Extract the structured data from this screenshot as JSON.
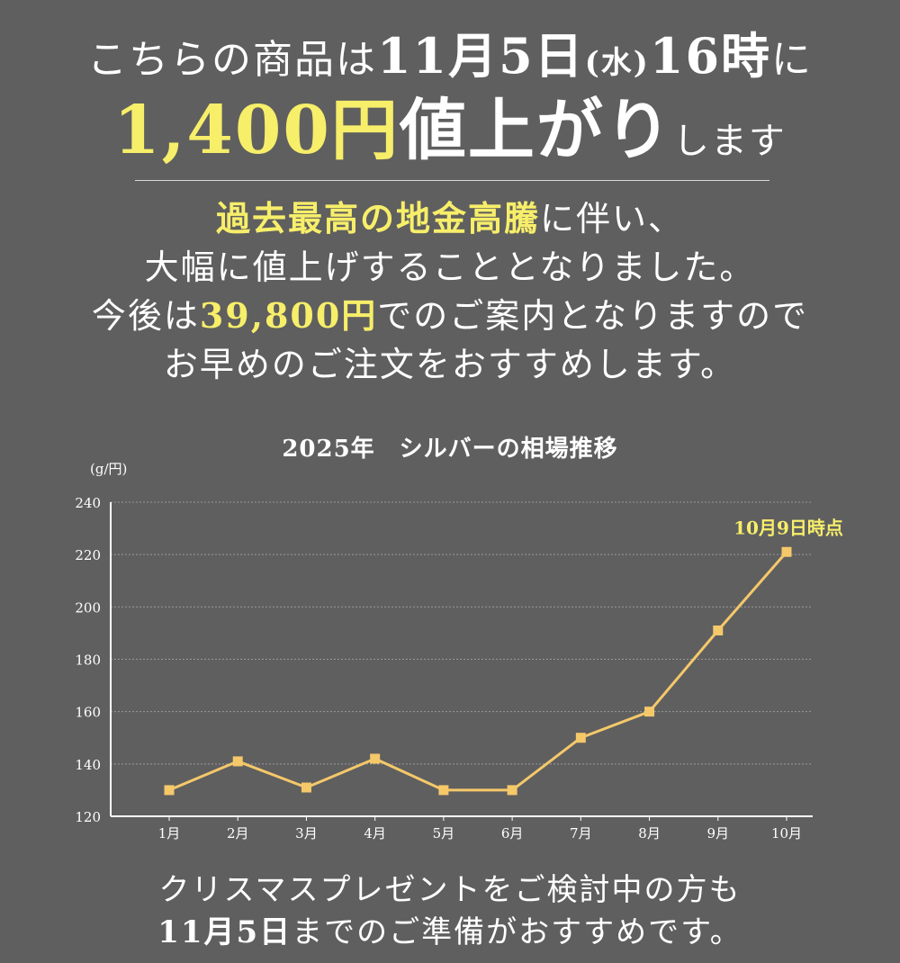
{
  "headline": {
    "part1": "こちらの商品は",
    "date_em": "11月5日",
    "weekday": "(水)",
    "time_em": "16時",
    "part2": "に",
    "price_rise": "1,400円",
    "rise_word": "値上がり",
    "tail": "します"
  },
  "body": {
    "l1_em": "過去最高の地金高騰",
    "l1_rest": "に伴い、",
    "l2": "大幅に値上げすることとなりました。",
    "l3_pre": "今後は",
    "l3_price": "39,800円",
    "l3_rest": "でのご案内となりますので",
    "l4": "お早めのご注文をおすすめします。"
  },
  "chart_data": {
    "type": "line",
    "title": "2025年　シルバーの相場推移",
    "ylabel": "(g/円)",
    "xlabel": "",
    "categories": [
      "1月",
      "2月",
      "3月",
      "4月",
      "5月",
      "6月",
      "7月",
      "8月",
      "9月",
      "10月"
    ],
    "values": [
      130,
      141,
      131,
      142,
      130,
      130,
      150,
      160,
      191,
      221
    ],
    "ylim": [
      120,
      240
    ],
    "yticks": [
      120,
      140,
      160,
      180,
      200,
      220,
      240
    ],
    "grid": "horizontal dotted",
    "annotation": "10月9日時点",
    "colors": {
      "line": "#f5c86a",
      "marker": "#f5c86a",
      "annotation": "#f7ee6a",
      "grid": "#9a9a9a",
      "axis": "#ffffff"
    }
  },
  "footer": {
    "l1": "クリスマスプレゼントをご検討中の方も",
    "l2_em": "11月5日",
    "l2_rest": "までのご準備がおすすめです。"
  }
}
